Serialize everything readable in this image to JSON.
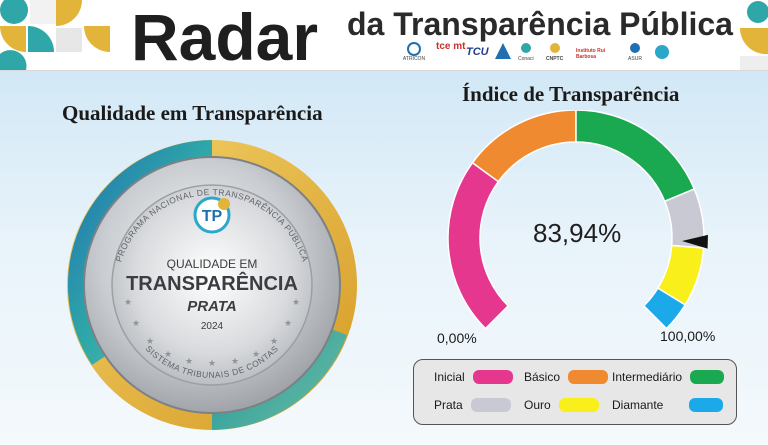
{
  "header": {
    "title_main": "Radar",
    "title_sub": "da Transparência Pública",
    "partner_logos": [
      "ATRICON",
      "tce mt",
      "TCU",
      "IRB",
      "Conaci",
      "CNPTC",
      "Instituto Rui Barbosa",
      "ASUR",
      "logo"
    ]
  },
  "left_panel": {
    "heading": "Qualidade em Transparência",
    "seal": {
      "top_ring_text": "PROGRAMA NACIONAL DE TRANSPARÊNCIA PÚBLICA",
      "bottom_ring_text": "SISTEMA TRIBUNAIS DE CONTAS",
      "badge": "TP",
      "line1": "QUALIDADE EM",
      "line2": "TRANSPARÊNCIA",
      "level": "PRATA",
      "year": "2024",
      "colors": {
        "gold": "#e2b53a",
        "teal": "#2fa7a8",
        "blue": "#1f6fb1",
        "silver": "#c9ccd0"
      }
    }
  },
  "right_panel": {
    "heading": "Índice de Transparência",
    "gauge": {
      "value_label": "83,94%",
      "value": 83.94,
      "min_label": "0,00%",
      "max_label": "100,00%",
      "bands": [
        {
          "name": "Inicial",
          "from": 0,
          "to": 30,
          "color": "#e6378f"
        },
        {
          "name": "Básico",
          "from": 30,
          "to": 50,
          "color": "#f08a30"
        },
        {
          "name": "Intermediário",
          "from": 50,
          "to": 75,
          "color": "#1aa850"
        },
        {
          "name": "Prata",
          "from": 75,
          "to": 85,
          "color": "#c9c9d4"
        },
        {
          "name": "Ouro",
          "from": 85,
          "to": 95,
          "color": "#f9ef1a"
        },
        {
          "name": "Diamante",
          "from": 95,
          "to": 100,
          "color": "#1ca9ea"
        }
      ]
    },
    "legend": [
      {
        "label": "Inicial",
        "color": "#e6378f"
      },
      {
        "label": "Básico",
        "color": "#f08a30"
      },
      {
        "label": "Intermediário",
        "color": "#1aa850"
      },
      {
        "label": "Prata",
        "color": "#c9c9d4"
      },
      {
        "label": "Ouro",
        "color": "#f9ef1a"
      },
      {
        "label": "Diamante",
        "color": "#1ca9ea"
      }
    ]
  }
}
